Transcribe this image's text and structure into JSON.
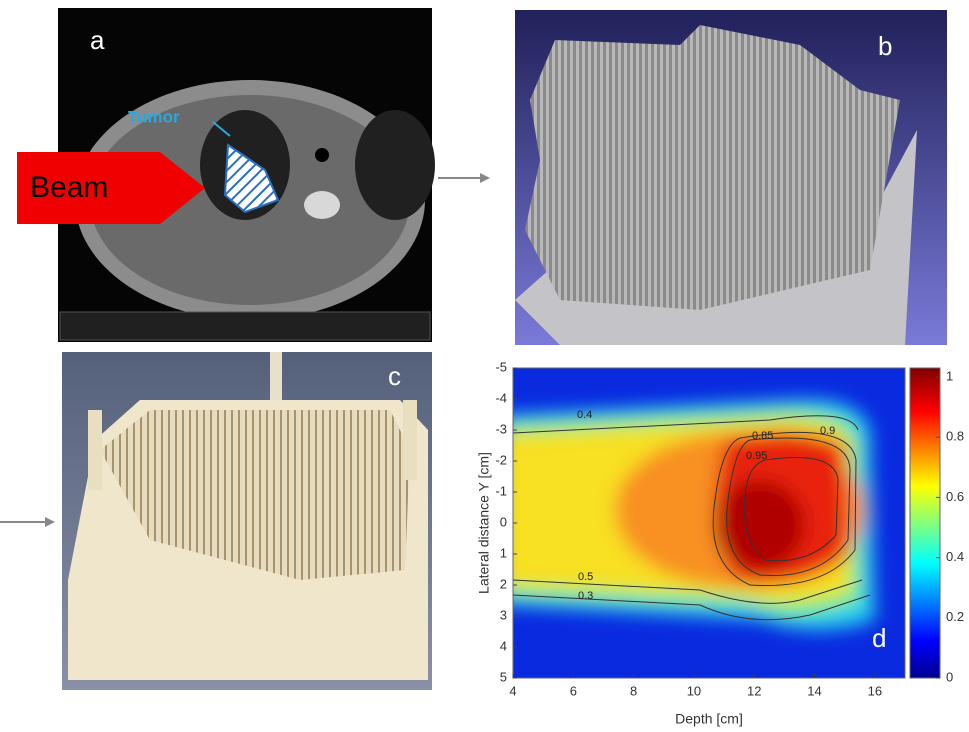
{
  "panels": {
    "a": {
      "label": "a",
      "tumor": "Tumor",
      "beam": "Beam"
    },
    "b": {
      "label": "b"
    },
    "c": {
      "label": "c"
    },
    "d": {
      "label": "d"
    }
  },
  "chart_data": {
    "type": "heatmap",
    "xlabel": "Depth [cm]",
    "ylabel": "Lateral distance Y [cm]",
    "xlim": [
      4,
      17
    ],
    "xticks": [
      4,
      6,
      8,
      10,
      12,
      14,
      16
    ],
    "ylim": [
      -5,
      5
    ],
    "yticks": [
      -5,
      -4,
      -3,
      -2,
      -1,
      0,
      1,
      2,
      3,
      4,
      5
    ],
    "colorbar": {
      "lim": [
        0,
        1.03
      ],
      "ticks": [
        0,
        0.2,
        0.4,
        0.6,
        0.8,
        1
      ]
    },
    "contours": [
      0.4,
      0.85,
      0.95,
      0.9,
      0.5,
      0.3
    ]
  }
}
